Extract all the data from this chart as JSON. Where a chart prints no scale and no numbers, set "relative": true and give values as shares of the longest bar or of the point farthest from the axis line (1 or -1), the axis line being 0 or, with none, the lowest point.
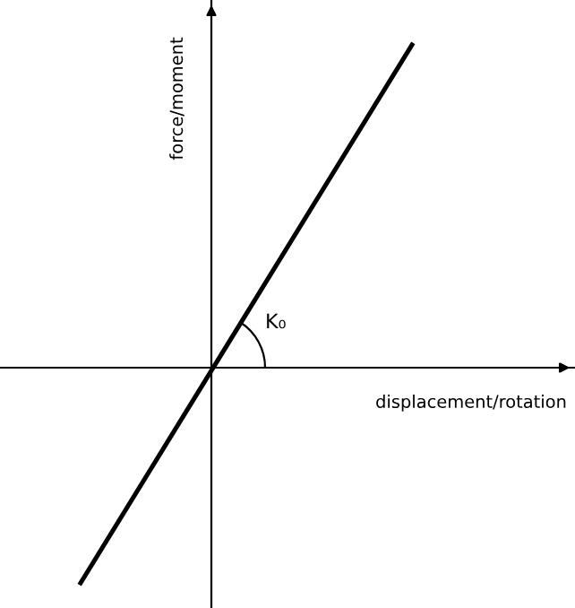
{
  "chart_data": {
    "type": "line",
    "relative": true,
    "xlabel": "displacement/rotation",
    "ylabel": "force/moment",
    "categories": [
      null,
      null
    ],
    "series": [
      {
        "color": "#000000",
        "values": [
          -0.667,
          1
        ]
      }
    ],
    "annotations": [
      "K₀"
    ],
    "marker": "none",
    "line_style": "solid"
  }
}
